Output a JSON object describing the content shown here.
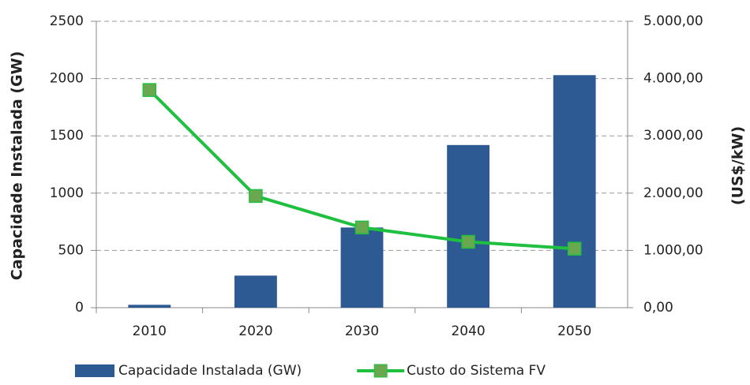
{
  "chart_data": {
    "type": "bar",
    "categories": [
      "2010",
      "2020",
      "2030",
      "2040",
      "2050"
    ],
    "series": [
      {
        "name": "Capacidade Instalada (GW)",
        "type": "bar",
        "color": "#2e5a93",
        "values": [
          25,
          280,
          700,
          1420,
          2030
        ]
      },
      {
        "name": "Custo do Sistema FV",
        "type": "line",
        "axis": "y2",
        "color": "#1fbf3f",
        "marker_color": "#6aa84f",
        "values": [
          3800,
          1950,
          1400,
          1150,
          1030
        ]
      }
    ],
    "ylabel": "Capacidade Instalada (GW)",
    "y2label": "(US$/kW)",
    "ylim": [
      0,
      2500
    ],
    "yticks": [
      0,
      500,
      1000,
      1500,
      2000,
      2500
    ],
    "y2lim": [
      0,
      5000
    ],
    "y2ticks": [
      {
        "value": 0,
        "label": "0,00"
      },
      {
        "value": 1000,
        "label": "1.000,00"
      },
      {
        "value": 2000,
        "label": "2.000,00"
      },
      {
        "value": 3000,
        "label": "3.000,00"
      },
      {
        "value": 4000,
        "label": "4.000,00"
      },
      {
        "value": 5000,
        "label": "5.000,00"
      }
    ],
    "grid": true,
    "legend": "bottom"
  }
}
